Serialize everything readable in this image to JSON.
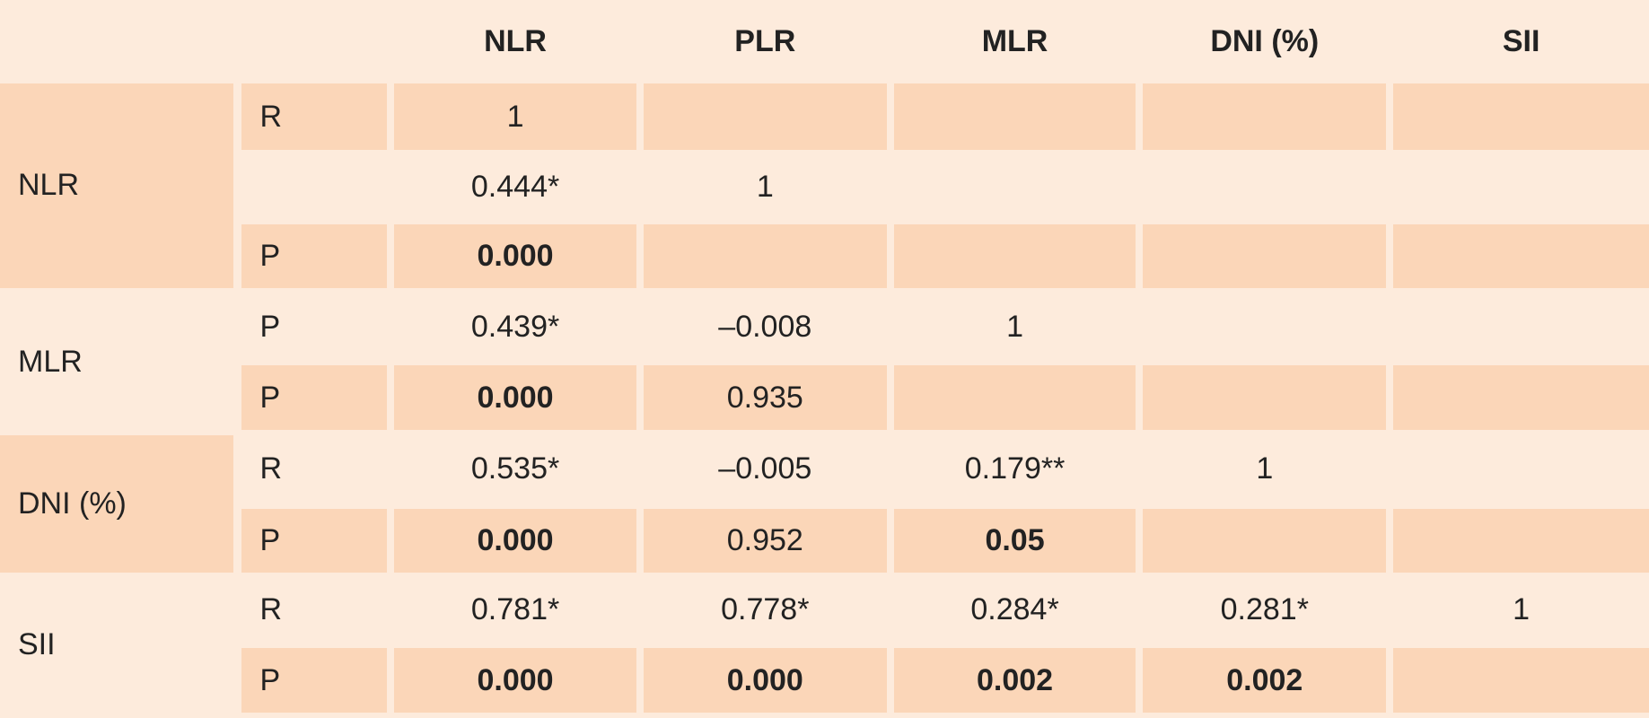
{
  "table": {
    "columns": [
      "NLR",
      "PLR",
      "MLR",
      "DNI (%)",
      "SII"
    ],
    "groups": [
      {
        "label": "NLR",
        "rows": [
          {
            "stat": "R",
            "cells": [
              "1"
            ]
          },
          {
            "cells": [
              "0.444*",
              "1"
            ]
          },
          {
            "stat": "P",
            "cells": [
              "0.000"
            ]
          }
        ]
      },
      {
        "label": "MLR",
        "rows": [
          {
            "stat": "P",
            "cells": [
              "0.439*",
              "–0.008",
              "1"
            ]
          },
          {
            "stat": "P",
            "cells": [
              "0.000",
              "0.935"
            ]
          }
        ]
      },
      {
        "label": "DNI (%)",
        "rows": [
          {
            "stat": "R",
            "cells": [
              "0.535*",
              "–0.005",
              "0.179**",
              "1"
            ]
          },
          {
            "stat": "P",
            "cells": [
              "0.000",
              "0.952",
              "0.05"
            ]
          }
        ]
      },
      {
        "label": "SII",
        "rows": [
          {
            "stat": "R",
            "cells": [
              "0.781*",
              "0.778*",
              "0.284*",
              "0.281*",
              "1"
            ]
          },
          {
            "stat": "P",
            "cells": [
              "0.000",
              "0.000",
              "0.002",
              "0.002"
            ]
          }
        ]
      }
    ]
  }
}
